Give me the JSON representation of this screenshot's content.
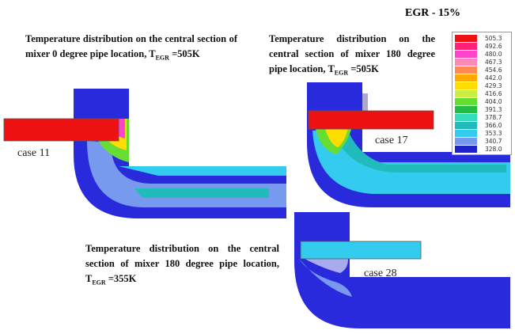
{
  "header": {
    "title": "EGR  - 15%"
  },
  "panels": [
    {
      "caption": "Temperature distribution on the central section of mixer  0 degree pipe location,",
      "t_symbol": "T",
      "t_subscript": "EGR",
      "t_value": "=505K",
      "case_label": "case 11"
    },
    {
      "caption": "Temperature distribution on the central section of mixer 180 degree pipe location,",
      "t_symbol": "T",
      "t_subscript": "EGR",
      "t_value": "=505K",
      "case_label": "case 17"
    },
    {
      "caption": "Temperature distribution on the central section of mixer 180 degree pipe location,",
      "t_symbol": "T",
      "t_subscript": "EGR",
      "t_value": "=355K",
      "case_label": "case 28"
    }
  ],
  "legend": {
    "entries": [
      {
        "label": "505.3",
        "color": "#ee1111"
      },
      {
        "label": "492.6",
        "color": "#ff2277"
      },
      {
        "label": "480.0",
        "color": "#ff44cc"
      },
      {
        "label": "467.3",
        "color": "#ff88bb"
      },
      {
        "label": "454.6",
        "color": "#ff8855"
      },
      {
        "label": "442.0",
        "color": "#ffaa00"
      },
      {
        "label": "429.3",
        "color": "#ffdd00"
      },
      {
        "label": "416.6",
        "color": "#ccee44"
      },
      {
        "label": "404.0",
        "color": "#66dd33"
      },
      {
        "label": "391.3",
        "color": "#22bb44"
      },
      {
        "label": "378.7",
        "color": "#33ddbb"
      },
      {
        "label": "366.0",
        "color": "#22bbbb"
      },
      {
        "label": "353.3",
        "color": "#33ccee"
      },
      {
        "label": "340.7",
        "color": "#7799ee"
      },
      {
        "label": "328.0",
        "color": "#2222cc"
      }
    ]
  }
}
